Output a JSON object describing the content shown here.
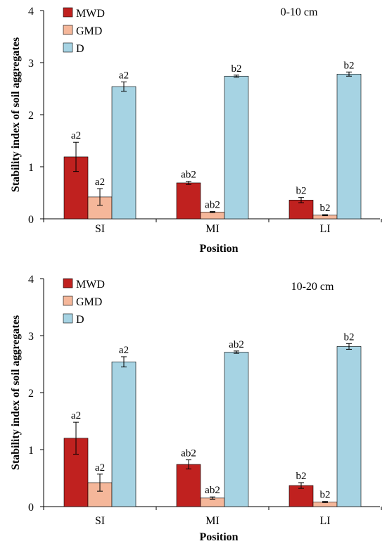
{
  "chart_data": [
    {
      "type": "bar",
      "annotation": "0-10 cm",
      "xlabel": "Position",
      "ylabel": "Stability index of soil aggregates",
      "categories": [
        "SI",
        "MI",
        "LI"
      ],
      "ylim": [
        0,
        4
      ],
      "yticks": [
        "0",
        "1",
        "2",
        "3",
        "4"
      ],
      "legend_position": "top-left",
      "series": [
        {
          "name": "MWD",
          "color": "#c0211f",
          "values": [
            1.19,
            0.69,
            0.36
          ],
          "errors": [
            0.28,
            0.03,
            0.05
          ],
          "labels": [
            "a2",
            "ab2",
            "b2"
          ]
        },
        {
          "name": "GMD",
          "color": "#f5b79a",
          "values": [
            0.42,
            0.13,
            0.07
          ],
          "errors": [
            0.16,
            0.01,
            0.01
          ],
          "labels": [
            "a2",
            "ab2",
            "b2"
          ]
        },
        {
          "name": "D",
          "color": "#a6d3e3",
          "values": [
            2.54,
            2.74,
            2.78
          ],
          "errors": [
            0.09,
            0.02,
            0.04
          ],
          "labels": [
            "a2",
            "b2",
            "b2"
          ]
        }
      ]
    },
    {
      "type": "bar",
      "annotation": "10-20 cm",
      "xlabel": "Position",
      "ylabel": "Stability index of soil aggregates",
      "categories": [
        "SI",
        "MI",
        "LI"
      ],
      "ylim": [
        0,
        4
      ],
      "yticks": [
        "0",
        "1",
        "2",
        "3",
        "4"
      ],
      "legend_position": "top-left",
      "series": [
        {
          "name": "MWD",
          "color": "#c0211f",
          "values": [
            1.2,
            0.74,
            0.37
          ],
          "errors": [
            0.28,
            0.08,
            0.05
          ],
          "labels": [
            "a2",
            "ab2",
            "b2"
          ]
        },
        {
          "name": "GMD",
          "color": "#f5b79a",
          "values": [
            0.42,
            0.15,
            0.08
          ],
          "errors": [
            0.15,
            0.02,
            0.01
          ],
          "labels": [
            "a2",
            "ab2",
            "b2"
          ]
        },
        {
          "name": "D",
          "color": "#a6d3e3",
          "values": [
            2.54,
            2.71,
            2.81
          ],
          "errors": [
            0.09,
            0.02,
            0.05
          ],
          "labels": [
            "a2",
            "ab2",
            "b2"
          ]
        }
      ]
    }
  ]
}
